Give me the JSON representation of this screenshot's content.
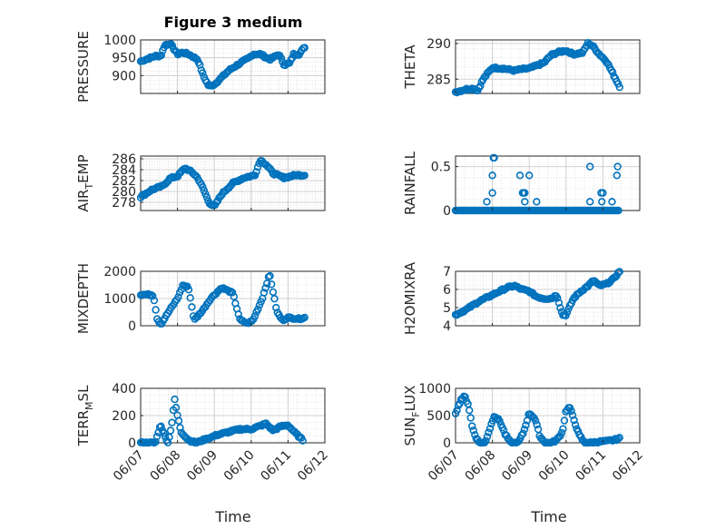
{
  "figure": {
    "title": "Figure 3 medium",
    "xlabel": "Time"
  },
  "colors": {
    "marker": "#0072bd",
    "axis": "#262626",
    "grid": "#d0d0d0"
  },
  "chart_data": [
    {
      "type": "scatter",
      "ylabel": "PRESSURE",
      "title": "Figure 3 medium",
      "xlim": [
        0,
        5
      ],
      "ylim": [
        850,
        1000
      ],
      "yticks": [
        900,
        950,
        1000
      ],
      "grid": true,
      "keypoints_x": [
        0.0,
        0.4,
        0.55,
        0.65,
        0.8,
        1.0,
        1.15,
        1.3,
        1.55,
        1.7,
        1.85,
        2.0,
        2.4,
        2.7,
        2.95,
        3.05,
        3.25,
        3.5,
        3.75,
        3.9,
        4.05,
        4.15,
        4.3,
        4.45
      ],
      "keypoints_y": [
        940,
        955,
        955,
        985,
        990,
        960,
        965,
        960,
        945,
        900,
        870,
        875,
        915,
        935,
        950,
        960,
        960,
        945,
        960,
        930,
        935,
        960,
        960,
        980
      ]
    },
    {
      "type": "scatter",
      "ylabel": "THETA",
      "xlim": [
        0,
        5
      ],
      "ylim": [
        283,
        290.5
      ],
      "yticks": [
        285,
        290
      ],
      "grid": true,
      "keypoints_x": [
        0.0,
        0.3,
        0.5,
        0.6,
        0.75,
        0.9,
        1.0,
        1.3,
        1.6,
        1.8,
        2.0,
        2.4,
        2.6,
        2.8,
        3.0,
        3.2,
        3.45,
        3.6,
        3.75,
        3.9,
        4.1,
        4.3,
        4.45
      ],
      "keypoints_y": [
        283.2,
        283.6,
        283.7,
        283.4,
        285.0,
        286.0,
        286.6,
        286.5,
        286.2,
        286.4,
        286.5,
        287.3,
        288.4,
        288.8,
        289.0,
        288.5,
        288.7,
        290.1,
        289.5,
        288.5,
        287.5,
        285.5,
        284.0
      ]
    },
    {
      "type": "scatter",
      "ylabel": "AIR_TEMP",
      "ylabel_main": "AIR",
      "ylabel_sub": "T",
      "ylabel_rest": "EMP",
      "xlim": [
        0,
        5
      ],
      "ylim": [
        276.5,
        286.5
      ],
      "yticks": [
        278,
        280,
        282,
        284,
        286
      ],
      "tick_labels": [
        "278",
        "280",
        "282",
        "284",
        "286"
      ],
      "grid": true,
      "keypoints_x": [
        0.0,
        0.3,
        0.6,
        0.8,
        1.0,
        1.2,
        1.4,
        1.55,
        1.7,
        1.85,
        2.0,
        2.2,
        2.5,
        2.8,
        3.1,
        3.25,
        3.4,
        3.6,
        3.9,
        4.2,
        4.45
      ],
      "keypoints_y": [
        279.0,
        280.3,
        281.0,
        282.4,
        282.8,
        284.3,
        283.5,
        282.5,
        280.5,
        278.0,
        277.2,
        279.5,
        281.5,
        282.5,
        283.0,
        285.8,
        285.0,
        283.3,
        282.5,
        283.0,
        283.0
      ]
    },
    {
      "type": "scatter",
      "ylabel": "RAINFALL",
      "xlim": [
        0,
        5
      ],
      "ylim": [
        0,
        0.62
      ],
      "yticks": [
        0,
        0.5
      ],
      "tick_labels": [
        "0",
        "0.5"
      ],
      "grid": true,
      "baseline": {
        "from": 0.0,
        "to": 4.42,
        "value": 0
      },
      "events": [
        {
          "x": 0.85,
          "y": 0.1
        },
        {
          "x": 1.03,
          "y": 0.6
        },
        {
          "x": 1.05,
          "y": 0.6
        },
        {
          "x": 1.0,
          "y": 0.4
        },
        {
          "x": 1.0,
          "y": 0.2
        },
        {
          "x": 1.75,
          "y": 0.4
        },
        {
          "x": 1.82,
          "y": 0.2
        },
        {
          "x": 1.85,
          "y": 0.2
        },
        {
          "x": 1.88,
          "y": 0.2
        },
        {
          "x": 1.88,
          "y": 0.1
        },
        {
          "x": 2.0,
          "y": 0.4
        },
        {
          "x": 2.2,
          "y": 0.1
        },
        {
          "x": 3.65,
          "y": 0.5
        },
        {
          "x": 3.65,
          "y": 0.1
        },
        {
          "x": 3.95,
          "y": 0.2
        },
        {
          "x": 3.97,
          "y": 0.1
        },
        {
          "x": 4.0,
          "y": 0.2
        },
        {
          "x": 4.25,
          "y": 0.1
        },
        {
          "x": 4.4,
          "y": 0.5
        },
        {
          "x": 4.38,
          "y": 0.4
        }
      ]
    },
    {
      "type": "scatter",
      "ylabel": "MIXDEPTH",
      "xlim": [
        0,
        5
      ],
      "ylim": [
        0,
        2000
      ],
      "yticks": [
        0,
        1000,
        2000
      ],
      "tick_labels": [
        "0",
        "1000",
        "2000"
      ],
      "grid": true,
      "segments": [
        {
          "x": [
            0.0,
            0.3,
            0.35,
            0.45,
            0.55,
            0.8,
            1.0,
            1.15,
            1.3,
            1.45,
            1.55,
            1.7,
            1.9,
            2.2,
            2.5,
            2.7,
            2.85,
            2.9,
            3.05,
            3.3,
            3.5,
            3.7,
            3.85,
            4.0,
            4.3,
            4.45
          ],
          "y": [
            1150,
            1140,
            1100,
            250,
            50,
            600,
            1000,
            1500,
            1400,
            200,
            350,
            600,
            1000,
            1400,
            1200,
            200,
            120,
            80,
            200,
            1000,
            1900,
            500,
            200,
            300,
            250,
            300
          ]
        }
      ]
    },
    {
      "type": "scatter",
      "ylabel": "H2OMIXRA",
      "xlim": [
        0,
        5
      ],
      "ylim": [
        4,
        7
      ],
      "yticks": [
        4,
        5,
        6,
        7
      ],
      "tick_labels": [
        "4",
        "5",
        "6",
        "7"
      ],
      "grid": true,
      "keypoints_x": [
        0.0,
        0.3,
        0.6,
        0.9,
        1.2,
        1.4,
        1.6,
        1.8,
        2.0,
        2.2,
        2.4,
        2.6,
        2.75,
        2.9,
        3.0,
        3.2,
        3.4,
        3.6,
        3.75,
        3.9,
        4.1,
        4.3,
        4.45
      ],
      "keypoints_y": [
        4.6,
        4.9,
        5.3,
        5.6,
        5.9,
        6.1,
        6.2,
        6.0,
        5.9,
        5.6,
        5.5,
        5.5,
        5.7,
        4.6,
        4.6,
        5.5,
        5.9,
        6.2,
        6.5,
        6.2,
        6.3,
        6.6,
        7.0
      ]
    },
    {
      "type": "scatter",
      "ylabel": "TERR_MSL",
      "ylabel_main": "TERR",
      "ylabel_sub": "M",
      "ylabel_rest": "SL",
      "xlim": [
        0,
        5
      ],
      "ylim": [
        0,
        400
      ],
      "yticks": [
        0,
        200,
        400
      ],
      "tick_labels": [
        "0",
        "200",
        "400"
      ],
      "grid": true,
      "keypoints_x": [
        0.0,
        0.4,
        0.5,
        0.55,
        0.65,
        0.75,
        0.85,
        0.92,
        1.0,
        1.1,
        1.3,
        1.5,
        1.8,
        2.1,
        2.4,
        2.7,
        3.0,
        3.2,
        3.4,
        3.6,
        3.8,
        4.0,
        4.2,
        4.4
      ],
      "keypoints_y": [
        0,
        0,
        100,
        130,
        50,
        0,
        150,
        320,
        200,
        80,
        20,
        0,
        30,
        60,
        80,
        100,
        100,
        120,
        140,
        90,
        120,
        130,
        70,
        20
      ]
    },
    {
      "type": "scatter",
      "ylabel": "SUN_FLUX",
      "ylabel_main": "SUN",
      "ylabel_sub": "F",
      "ylabel_rest": "LUX",
      "xlim": [
        0,
        5
      ],
      "ylim": [
        0,
        1000
      ],
      "yticks": [
        0,
        500,
        1000
      ],
      "tick_labels": [
        "0",
        "500",
        "1000"
      ],
      "grid": true,
      "keypoints_x": [
        0.0,
        0.15,
        0.25,
        0.35,
        0.45,
        0.55,
        0.65,
        0.8,
        0.95,
        1.05,
        1.2,
        1.35,
        1.5,
        1.7,
        1.85,
        2.0,
        2.15,
        2.3,
        2.45,
        2.6,
        2.75,
        2.9,
        3.0,
        3.1,
        3.2,
        3.35,
        3.5,
        3.7,
        3.9,
        4.1,
        4.3,
        4.45
      ],
      "keypoints_y": [
        550,
        800,
        850,
        700,
        300,
        100,
        0,
        0,
        300,
        500,
        400,
        150,
        0,
        0,
        200,
        550,
        450,
        100,
        0,
        0,
        50,
        200,
        600,
        650,
        450,
        150,
        0,
        0,
        20,
        30,
        50,
        80
      ]
    }
  ],
  "x_axis": {
    "ticks": [
      0,
      1,
      2,
      3,
      4,
      5
    ],
    "tick_labels": [
      "06/07",
      "06/08",
      "06/09",
      "06/10",
      "06/11",
      "06/12"
    ]
  }
}
